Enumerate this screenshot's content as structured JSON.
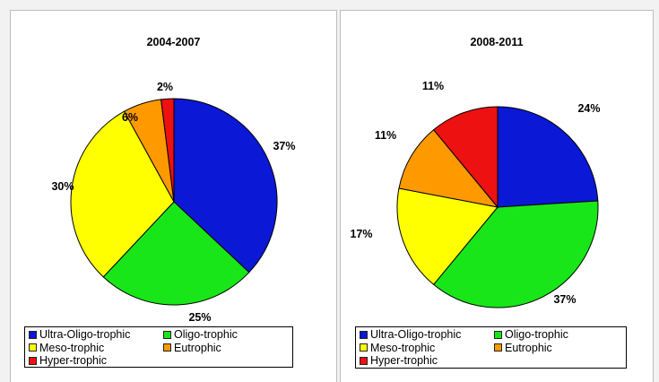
{
  "chart_data": [
    {
      "type": "pie",
      "title": "2004-2007",
      "categories": [
        "Ultra-Oligo-trophic",
        "Oligo-trophic",
        "Meso-trophic",
        "Eutrophic",
        "Hyper-trophic"
      ],
      "values": [
        37,
        25,
        30,
        6,
        2
      ],
      "labels": [
        "37%",
        "25%",
        "30%",
        "6%",
        "2%"
      ],
      "colors": [
        "#0b18d6",
        "#19e619",
        "#ffff00",
        "#ff9900",
        "#ee1111"
      ],
      "start_angle_deg": 0,
      "direction": "clockwise",
      "legend_position": "bottom"
    },
    {
      "type": "pie",
      "title": "2008-2011",
      "categories": [
        "Ultra-Oligo-trophic",
        "Oligo-trophic",
        "Meso-trophic",
        "Eutrophic",
        "Hyper-trophic"
      ],
      "values": [
        24,
        37,
        17,
        11,
        11
      ],
      "labels": [
        "24%",
        "37%",
        "17%",
        "11%",
        "11%"
      ],
      "colors": [
        "#0b18d6",
        "#19e619",
        "#ffff00",
        "#ff9900",
        "#ee1111"
      ],
      "start_angle_deg": 0,
      "direction": "clockwise",
      "legend_position": "bottom"
    }
  ]
}
